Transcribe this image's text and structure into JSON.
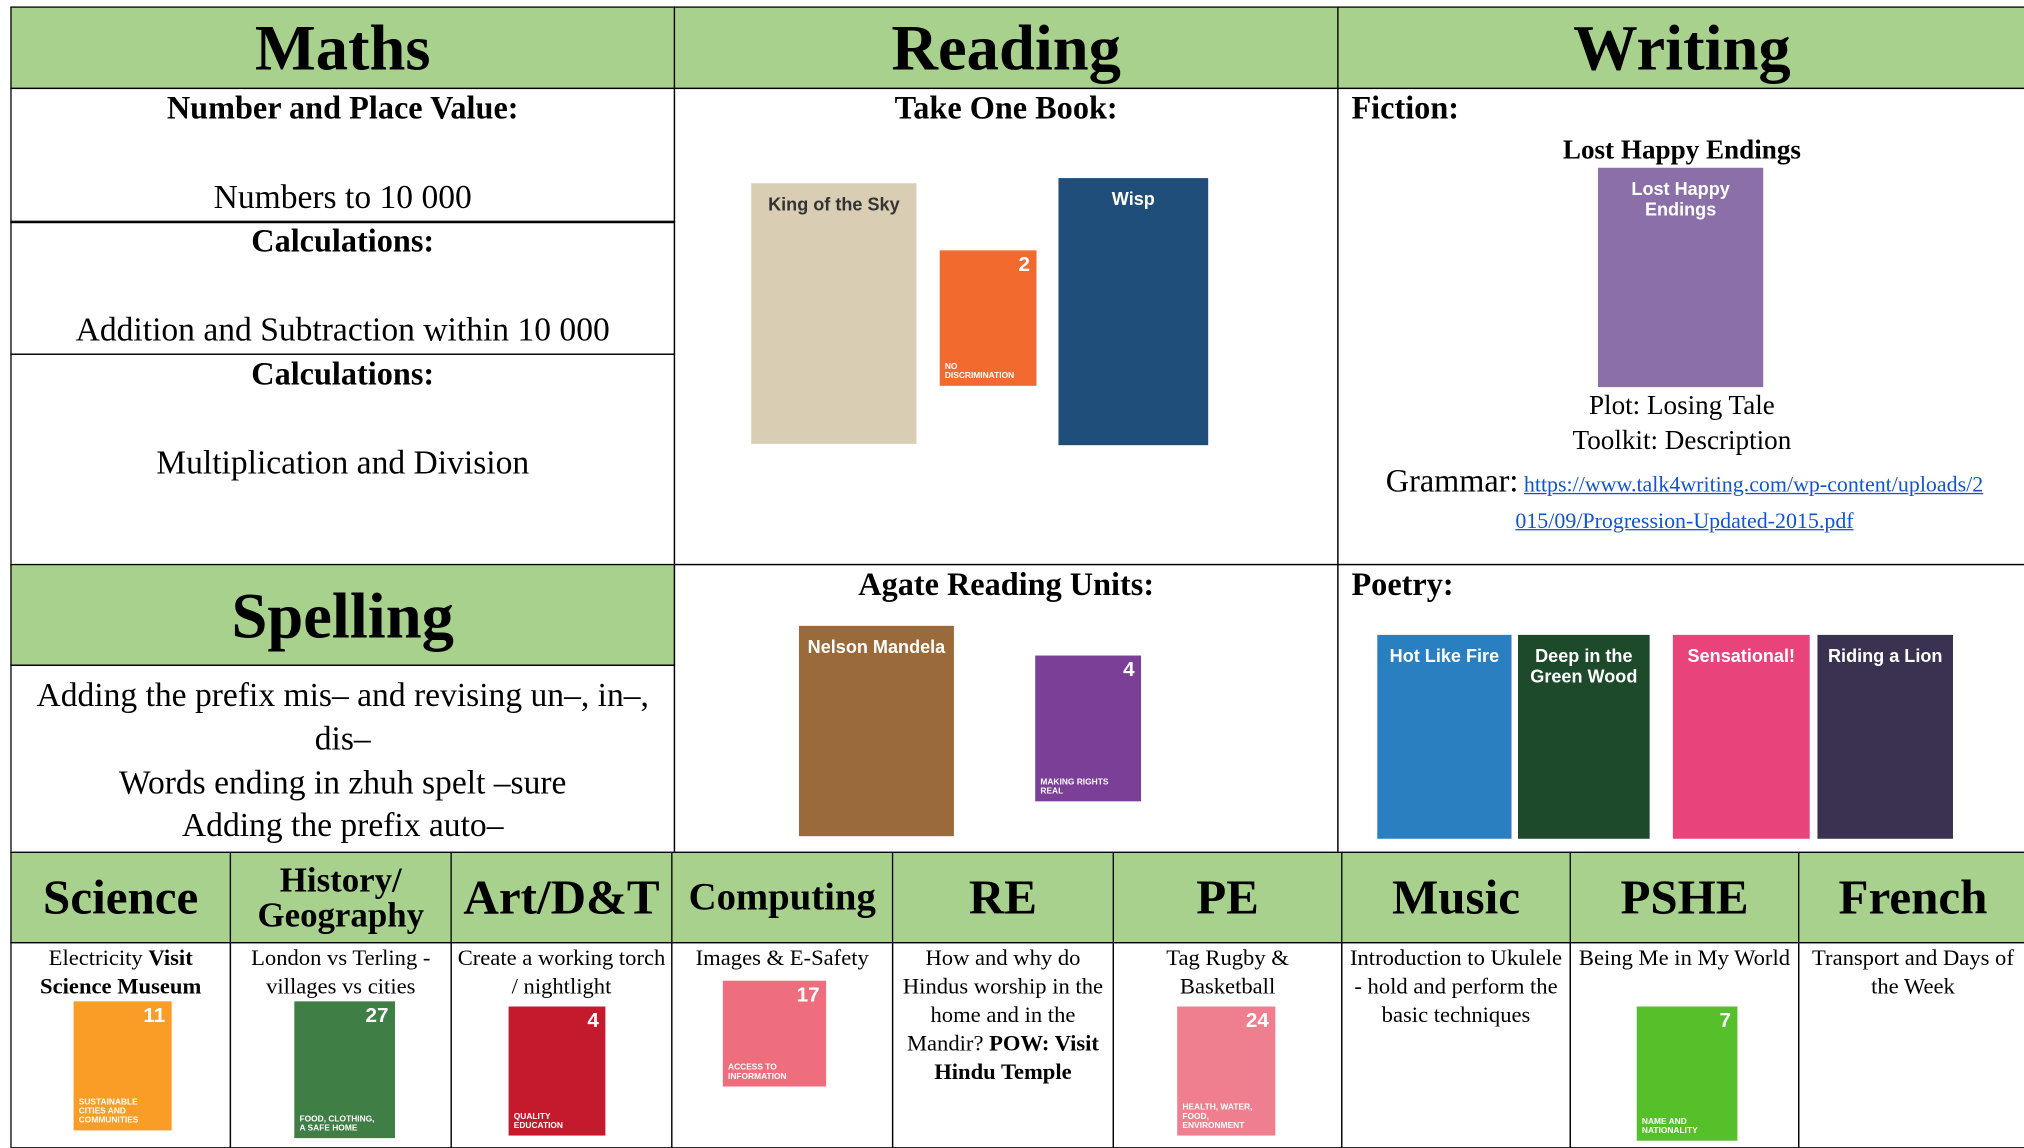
{
  "header": {
    "maths": "Maths",
    "reading": "Reading",
    "writing": "Writing",
    "spelling": "Spelling"
  },
  "maths": {
    "sections": [
      {
        "heading": "Number and Place Value:",
        "text": "Numbers to 10 000"
      },
      {
        "heading": "Calculations:",
        "text": "Addition and Subtraction within 10 000"
      },
      {
        "heading": "Calculations:",
        "text": "Multiplication and Division"
      }
    ]
  },
  "reading": {
    "heading": "Take One Book:",
    "books": [
      "King of the Sky",
      "Wisp"
    ],
    "sdg": {
      "number": "2",
      "label": "NO DISCRIMINATION"
    },
    "agate_heading": "Agate Reading Units:",
    "agate_book": "Nelson Mandela",
    "agate_sdg": {
      "number": "4",
      "label": "MAKING RIGHTS REAL"
    }
  },
  "writing": {
    "fiction_heading": "Fiction:",
    "fiction_title": "Lost Happy Endings",
    "plot": "Plot: Losing Tale",
    "toolkit": "Toolkit: Description",
    "grammar_label": "Grammar:",
    "grammar_link": "https://www.talk4writing.com/wp-content/uploads/2015/09/Progression-Updated-2015.pdf",
    "poetry_heading": "Poetry:",
    "poetry_books": [
      "Hot Like Fire",
      "Deep in the Green Wood",
      "Sensational!",
      "Riding a Lion"
    ]
  },
  "spelling": {
    "lines": [
      "Adding the prefix mis– and revising un–, in–, dis–",
      "Words ending in zhuh spelt –sure",
      "Adding the prefix auto–"
    ]
  },
  "subjects": [
    {
      "name": "Science",
      "text": "Electricity",
      "bold": "Visit Science Museum",
      "sdg": {
        "number": "11",
        "label": "SUSTAINABLE CITIES AND COMMUNITIES"
      }
    },
    {
      "name": "History/ Geography",
      "text": "London vs Terling - villages vs cities",
      "sdg": {
        "number": "27",
        "label": "FOOD, CLOTHING, A SAFE HOME"
      }
    },
    {
      "name": "Art/D&T",
      "text": "Create a working torch / nightlight",
      "sdg": {
        "number": "4",
        "label": "QUALITY EDUCATION"
      }
    },
    {
      "name": "Computing",
      "text": "Images & E-Safety",
      "sdg": {
        "number": "17",
        "label": "ACCESS TO INFORMATION"
      }
    },
    {
      "name": "RE",
      "text": "How and why do Hindus worship in the home and in the Mandir?",
      "bold": "POW: Visit Hindu Temple"
    },
    {
      "name": "PE",
      "text": "Tag Rugby & Basketball",
      "sdg": {
        "number": "24",
        "label": "HEALTH, WATER, FOOD, ENVIRONMENT"
      }
    },
    {
      "name": "Music",
      "text": "Introduction to Ukulele - hold and perform the basic techniques"
    },
    {
      "name": "PSHE",
      "text": "Being Me in My World",
      "sdg": {
        "number": "7",
        "label": "NAME AND NATIONALITY"
      }
    },
    {
      "name": "French",
      "text": "Transport and Days of the Week"
    }
  ]
}
